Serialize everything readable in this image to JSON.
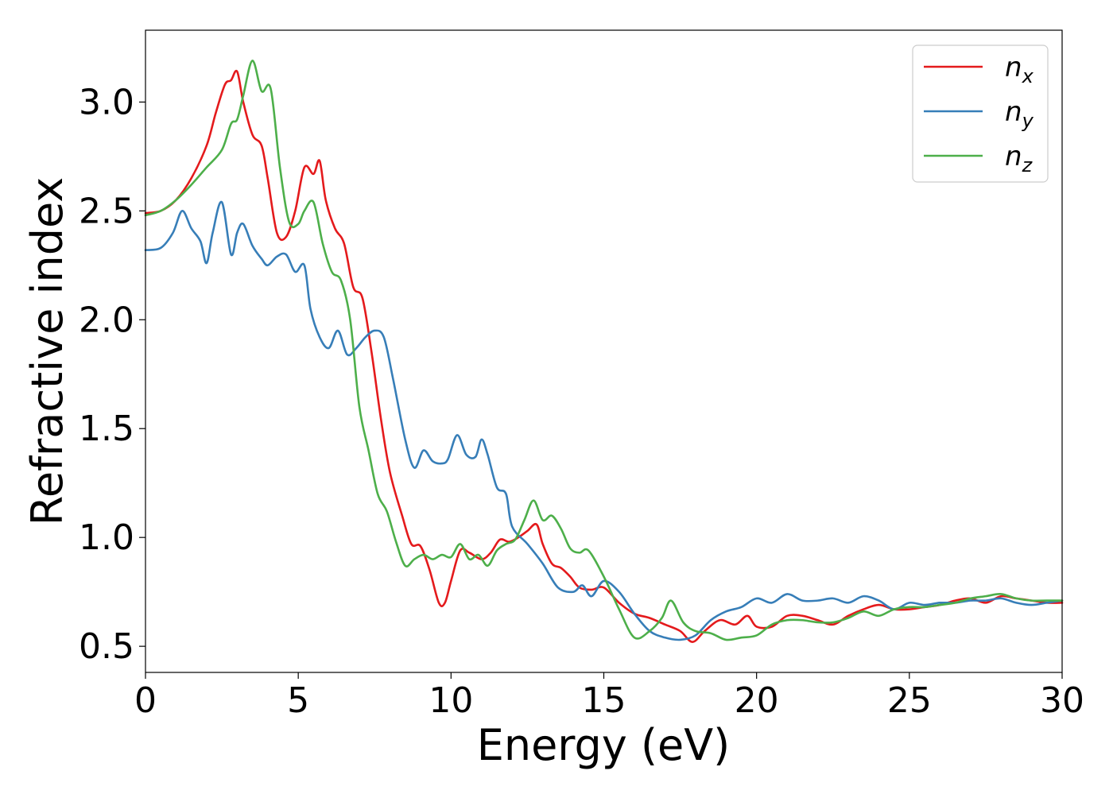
{
  "chart_data": {
    "type": "line",
    "title": "",
    "xlabel": "Energy (eV)",
    "ylabel": "Refractive index",
    "xlim": [
      0,
      30
    ],
    "ylim": [
      0.38,
      3.33
    ],
    "xticks": [
      0,
      5,
      10,
      15,
      20,
      25,
      30
    ],
    "xtick_labels": [
      "0",
      "5",
      "10",
      "15",
      "20",
      "25",
      "30"
    ],
    "yticks": [
      0.5,
      1.0,
      1.5,
      2.0,
      2.5,
      3.0
    ],
    "ytick_labels": [
      "0.5",
      "1.0",
      "1.5",
      "2.0",
      "2.5",
      "3.0"
    ],
    "grid": false,
    "legend_position": "top-right",
    "series": [
      {
        "name": "n",
        "subscript": "x",
        "color": "#e41a1c",
        "x": [
          0,
          0.5,
          1.0,
          1.5,
          2.0,
          2.3,
          2.6,
          2.8,
          3.0,
          3.2,
          3.5,
          3.8,
          4.0,
          4.3,
          4.6,
          4.9,
          5.2,
          5.5,
          5.7,
          5.9,
          6.2,
          6.5,
          6.8,
          7.1,
          7.4,
          7.7,
          8.0,
          8.4,
          8.7,
          9.0,
          9.3,
          9.6,
          9.8,
          10.0,
          10.3,
          10.6,
          11.0,
          11.3,
          11.6,
          11.9,
          12.2,
          12.5,
          12.8,
          13.0,
          13.3,
          13.6,
          13.9,
          14.2,
          14.6,
          15.0,
          15.5,
          16.0,
          16.5,
          17.0,
          17.5,
          17.9,
          18.3,
          18.8,
          19.3,
          19.7,
          20.0,
          20.5,
          21.0,
          21.5,
          22.0,
          22.5,
          23.0,
          23.5,
          24.0,
          24.5,
          25.0,
          25.5,
          26.0,
          26.5,
          27.0,
          27.5,
          28.0,
          28.5,
          29.0,
          29.5,
          30.0
        ],
        "y": [
          2.49,
          2.5,
          2.55,
          2.65,
          2.8,
          2.95,
          3.08,
          3.1,
          3.14,
          3.0,
          2.85,
          2.8,
          2.65,
          2.4,
          2.38,
          2.5,
          2.7,
          2.67,
          2.73,
          2.55,
          2.42,
          2.35,
          2.15,
          2.1,
          1.85,
          1.55,
          1.3,
          1.1,
          0.97,
          0.96,
          0.85,
          0.7,
          0.7,
          0.8,
          0.94,
          0.93,
          0.9,
          0.93,
          0.99,
          0.98,
          1.0,
          1.03,
          1.06,
          0.97,
          0.88,
          0.86,
          0.82,
          0.77,
          0.76,
          0.77,
          0.7,
          0.65,
          0.63,
          0.6,
          0.57,
          0.52,
          0.57,
          0.62,
          0.6,
          0.64,
          0.59,
          0.59,
          0.64,
          0.64,
          0.62,
          0.6,
          0.64,
          0.67,
          0.69,
          0.67,
          0.67,
          0.68,
          0.69,
          0.71,
          0.72,
          0.7,
          0.73,
          0.72,
          0.71,
          0.7,
          0.7
        ]
      },
      {
        "name": "n",
        "subscript": "y",
        "color": "#377eb8",
        "x": [
          0,
          0.5,
          0.9,
          1.2,
          1.5,
          1.8,
          2.0,
          2.2,
          2.5,
          2.8,
          3.0,
          3.2,
          3.5,
          3.8,
          4.0,
          4.3,
          4.6,
          4.9,
          5.2,
          5.4,
          5.7,
          6.0,
          6.3,
          6.6,
          6.9,
          7.2,
          7.5,
          7.8,
          8.1,
          8.5,
          8.8,
          9.1,
          9.4,
          9.7,
          9.9,
          10.2,
          10.5,
          10.8,
          11.0,
          11.2,
          11.5,
          11.8,
          12.0,
          12.5,
          13.0,
          13.5,
          14.0,
          14.3,
          14.6,
          15.0,
          15.5,
          16.0,
          16.5,
          17.0,
          17.5,
          18.0,
          18.5,
          19.0,
          19.5,
          20.0,
          20.5,
          21.0,
          21.5,
          22.0,
          22.5,
          23.0,
          23.5,
          24.0,
          24.5,
          25.0,
          25.5,
          26.0,
          26.5,
          27.0,
          27.5,
          28.0,
          28.5,
          29.0,
          29.5,
          30.0
        ],
        "y": [
          2.32,
          2.33,
          2.4,
          2.5,
          2.42,
          2.36,
          2.26,
          2.4,
          2.54,
          2.3,
          2.4,
          2.44,
          2.34,
          2.28,
          2.25,
          2.29,
          2.3,
          2.22,
          2.25,
          2.05,
          1.92,
          1.87,
          1.95,
          1.84,
          1.87,
          1.92,
          1.95,
          1.92,
          1.73,
          1.45,
          1.32,
          1.4,
          1.35,
          1.34,
          1.36,
          1.47,
          1.38,
          1.37,
          1.45,
          1.38,
          1.23,
          1.2,
          1.05,
          0.97,
          0.88,
          0.77,
          0.75,
          0.78,
          0.73,
          0.8,
          0.75,
          0.65,
          0.57,
          0.54,
          0.53,
          0.55,
          0.62,
          0.66,
          0.68,
          0.72,
          0.7,
          0.74,
          0.71,
          0.71,
          0.72,
          0.7,
          0.73,
          0.71,
          0.67,
          0.7,
          0.69,
          0.7,
          0.7,
          0.71,
          0.71,
          0.72,
          0.7,
          0.69,
          0.7,
          0.71
        ]
      },
      {
        "name": "n",
        "subscript": "z",
        "color": "#4daf4a",
        "x": [
          0,
          0.5,
          1.0,
          1.5,
          2.0,
          2.5,
          2.8,
          3.0,
          3.2,
          3.5,
          3.8,
          4.1,
          4.4,
          4.7,
          5.0,
          5.2,
          5.5,
          5.8,
          6.1,
          6.4,
          6.7,
          7.0,
          7.3,
          7.6,
          7.9,
          8.2,
          8.5,
          8.8,
          9.1,
          9.4,
          9.7,
          10.0,
          10.3,
          10.6,
          10.9,
          11.2,
          11.5,
          11.8,
          12.1,
          12.4,
          12.7,
          13.0,
          13.3,
          13.6,
          13.9,
          14.2,
          14.5,
          15.0,
          15.5,
          16.0,
          16.5,
          16.9,
          17.2,
          17.6,
          18.0,
          18.5,
          19.0,
          19.5,
          20.0,
          20.5,
          21.0,
          21.5,
          22.0,
          22.5,
          23.0,
          23.5,
          24.0,
          24.5,
          25.0,
          25.5,
          26.0,
          26.5,
          27.0,
          27.5,
          28.0,
          28.5,
          29.0,
          29.5,
          30.0
        ],
        "y": [
          2.48,
          2.5,
          2.55,
          2.62,
          2.7,
          2.78,
          2.9,
          2.92,
          3.03,
          3.19,
          3.05,
          3.06,
          2.7,
          2.45,
          2.44,
          2.5,
          2.54,
          2.35,
          2.22,
          2.18,
          2.0,
          1.6,
          1.4,
          1.2,
          1.12,
          0.98,
          0.87,
          0.9,
          0.92,
          0.9,
          0.92,
          0.91,
          0.97,
          0.9,
          0.92,
          0.87,
          0.94,
          0.97,
          0.99,
          1.08,
          1.17,
          1.08,
          1.1,
          1.04,
          0.95,
          0.93,
          0.94,
          0.82,
          0.67,
          0.54,
          0.57,
          0.63,
          0.71,
          0.61,
          0.57,
          0.56,
          0.53,
          0.54,
          0.55,
          0.6,
          0.62,
          0.62,
          0.61,
          0.61,
          0.63,
          0.66,
          0.64,
          0.67,
          0.68,
          0.68,
          0.69,
          0.7,
          0.72,
          0.73,
          0.74,
          0.72,
          0.71,
          0.71,
          0.71
        ]
      }
    ]
  }
}
